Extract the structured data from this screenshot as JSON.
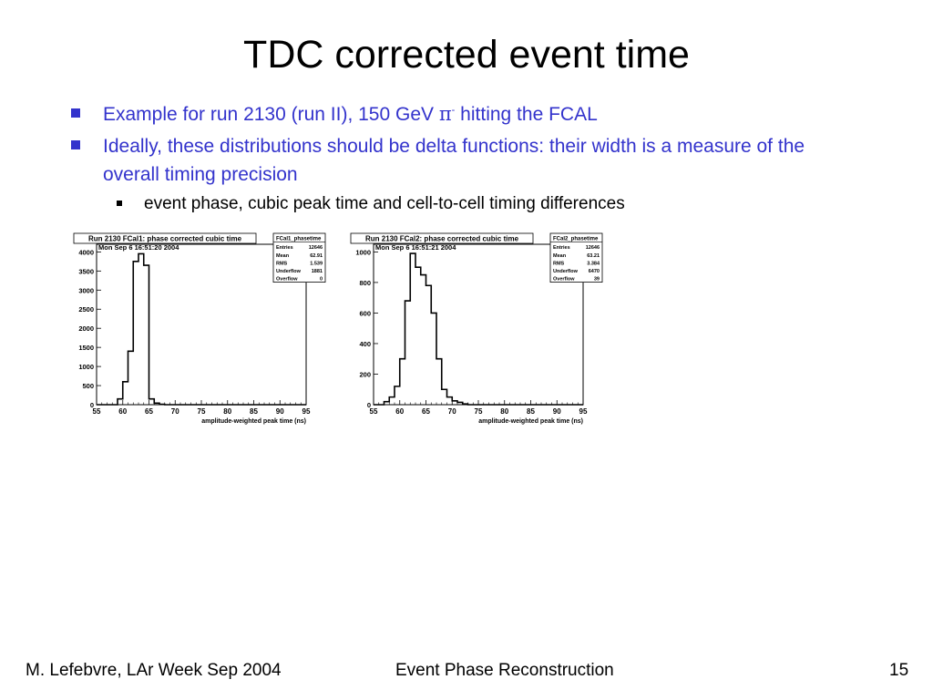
{
  "slide": {
    "title": "TDC corrected event time",
    "bullets": [
      {
        "text_before": "Example for run 2130 (run II), 150 GeV ",
        "symbol": "π",
        "sup": "-",
        "text_after": " hitting the FCAL"
      },
      {
        "text": "Ideally, these distributions should be delta functions: their width is a measure of the overall timing precision"
      }
    ],
    "sub_bullet": "event phase, cubic peak time and cell-to-cell timing differences",
    "footer": {
      "left": "M. Lefebvre, LAr Week Sep 2004",
      "center": "Event Phase Reconstruction",
      "page": "15"
    }
  },
  "chart_data": [
    {
      "type": "bar",
      "title": "Run 2130 FCal1: phase corrected cubic time",
      "subtitle": "Mon Sep  6 16:51:20 2004",
      "xlabel": "amplitude-weighted peak time (ns)",
      "ylabel": "",
      "xlim": [
        55,
        95
      ],
      "ylim": [
        0,
        4200
      ],
      "xticks": [
        "55",
        "60",
        "65",
        "70",
        "75",
        "80",
        "85",
        "90",
        "95"
      ],
      "yticks": [
        "0",
        "500",
        "1000",
        "1500",
        "2000",
        "2500",
        "3000",
        "3500",
        "4000"
      ],
      "bin_width": 1,
      "x": [
        59,
        60,
        61,
        62,
        63,
        64,
        65,
        66,
        67
      ],
      "values": [
        150,
        600,
        1400,
        3750,
        3950,
        3650,
        150,
        40,
        10
      ],
      "stats": {
        "name": "FCal1_phasetime",
        "rows": [
          [
            "Entries",
            "12646"
          ],
          [
            "Mean",
            "62.91"
          ],
          [
            "RMS",
            "1.539"
          ],
          [
            "Underflow",
            "1881"
          ],
          [
            "Overflow",
            "0"
          ]
        ]
      }
    },
    {
      "type": "bar",
      "title": "Run 2130 FCal2: phase corrected cubic time",
      "subtitle": "Mon Sep  6 16:51:21 2004",
      "xlabel": "amplitude-weighted peak time (ns)",
      "ylabel": "",
      "xlim": [
        55,
        95
      ],
      "ylim": [
        0,
        1050
      ],
      "xticks": [
        "55",
        "60",
        "65",
        "70",
        "75",
        "80",
        "85",
        "90",
        "95"
      ],
      "yticks": [
        "0",
        "200",
        "400",
        "600",
        "800",
        "1000"
      ],
      "bin_width": 1,
      "x": [
        57,
        58,
        59,
        60,
        61,
        62,
        63,
        64,
        65,
        66,
        67,
        68,
        69,
        70,
        71,
        72
      ],
      "values": [
        20,
        50,
        120,
        300,
        680,
        990,
        900,
        850,
        780,
        600,
        300,
        100,
        50,
        25,
        15,
        5
      ],
      "stats": {
        "name": "FCal2_phasetime",
        "rows": [
          [
            "Entries",
            "12646"
          ],
          [
            "Mean",
            "63.21"
          ],
          [
            "RMS",
            "3.384"
          ],
          [
            "Underflow",
            "6470"
          ],
          [
            "Overflow",
            "39"
          ]
        ]
      }
    }
  ]
}
